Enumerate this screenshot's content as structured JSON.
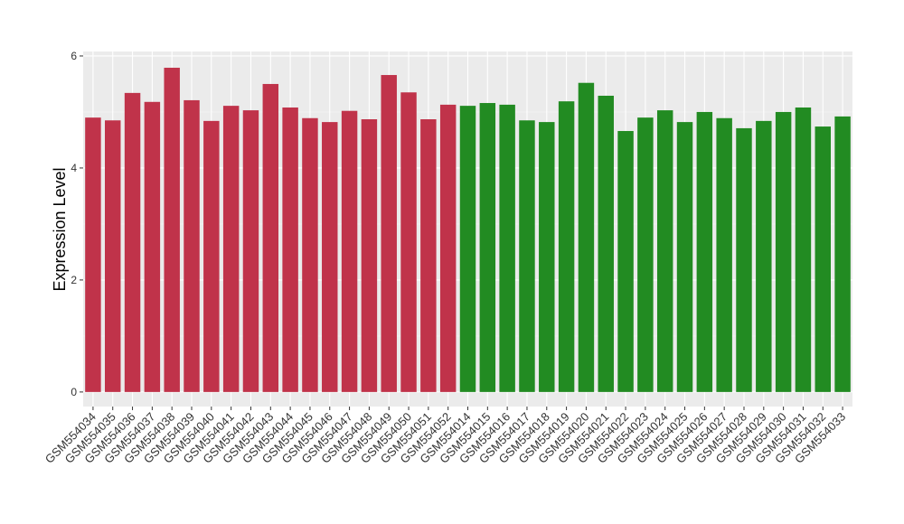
{
  "chart_data": {
    "type": "bar",
    "y_label": "Expression Level",
    "categories": [
      "GSM554034",
      "GSM554035",
      "GSM554036",
      "GSM554037",
      "GSM554038",
      "GSM554039",
      "GSM554040",
      "GSM554041",
      "GSM554042",
      "GSM554043",
      "GSM554044",
      "GSM554045",
      "GSM554046",
      "GSM554047",
      "GSM554048",
      "GSM554049",
      "GSM554050",
      "GSM554051",
      "GSM554052",
      "GSM554014",
      "GSM554015",
      "GSM554016",
      "GSM554017",
      "GSM554018",
      "GSM554019",
      "GSM554020",
      "GSM554021",
      "GSM554022",
      "GSM554023",
      "GSM554024",
      "GSM554025",
      "GSM554026",
      "GSM554027",
      "GSM554028",
      "GSM554029",
      "GSM554030",
      "GSM554031",
      "GSM554032",
      "GSM554033"
    ],
    "values": [
      4.9,
      4.85,
      5.34,
      5.18,
      5.79,
      5.21,
      4.84,
      5.11,
      5.03,
      5.5,
      5.08,
      4.89,
      4.82,
      5.02,
      4.87,
      5.66,
      5.35,
      4.87,
      5.13,
      5.11,
      5.16,
      5.13,
      4.85,
      4.82,
      5.19,
      5.52,
      5.29,
      4.66,
      4.9,
      5.03,
      4.82,
      5.0,
      4.89,
      4.71,
      4.84,
      5.0,
      5.08,
      4.74,
      4.92
    ],
    "colors": [
      "#c0334a",
      "#c0334a",
      "#c0334a",
      "#c0334a",
      "#c0334a",
      "#c0334a",
      "#c0334a",
      "#c0334a",
      "#c0334a",
      "#c0334a",
      "#c0334a",
      "#c0334a",
      "#c0334a",
      "#c0334a",
      "#c0334a",
      "#c0334a",
      "#c0334a",
      "#c0334a",
      "#c0334a",
      "#228b22",
      "#228b22",
      "#228b22",
      "#228b22",
      "#228b22",
      "#228b22",
      "#228b22",
      "#228b22",
      "#228b22",
      "#228b22",
      "#228b22",
      "#228b22",
      "#228b22",
      "#228b22",
      "#228b22",
      "#228b22",
      "#228b22",
      "#228b22",
      "#228b22",
      "#228b22"
    ],
    "ylim": [
      -0.26,
      6.08
    ],
    "yticks": [
      0,
      2,
      4,
      6
    ],
    "grid": true
  }
}
